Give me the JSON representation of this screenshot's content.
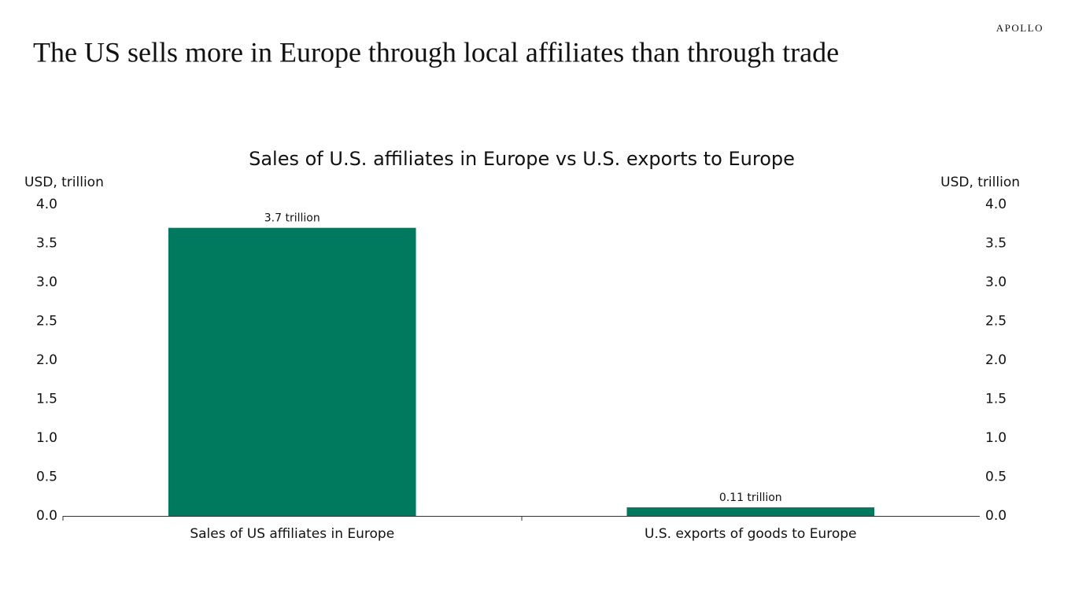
{
  "header": {
    "title": "The US sells more in Europe through local affiliates than through trade",
    "brand": "APOLLO"
  },
  "chart_data": {
    "type": "bar",
    "title": "Sales of U.S. affiliates in Europe vs U.S. exports to Europe",
    "ylabel": "USD, trillion",
    "y2label": "USD, trillion",
    "categories": [
      "Sales of US affiliates in Europe",
      "U.S. exports of goods to Europe"
    ],
    "values": [
      3.7,
      0.11
    ],
    "value_labels": [
      "3.7 trillion",
      "0.11 trillion"
    ],
    "color": "#007a5e",
    "ylim": [
      0,
      4
    ],
    "yticks": [
      {
        "value": 0,
        "label": "0.0"
      },
      0.5,
      {
        "value": 1,
        "label": "1.0"
      },
      1.5,
      {
        "value": 2,
        "label": "2.0"
      },
      2.5,
      {
        "value": 3,
        "label": "3.0"
      },
      3.5,
      {
        "value": 4,
        "label": "4.0"
      }
    ],
    "y2lim": [
      0,
      4
    ],
    "y2ticks": [
      {
        "value": 0,
        "label": "0.0"
      },
      0.5,
      {
        "value": 1,
        "label": "1.0"
      },
      1.5,
      {
        "value": 2,
        "label": "2.0"
      },
      2.5,
      {
        "value": 3,
        "label": "3.0"
      },
      3.5,
      {
        "value": 4,
        "label": "4.0"
      }
    ],
    "grid": false
  }
}
